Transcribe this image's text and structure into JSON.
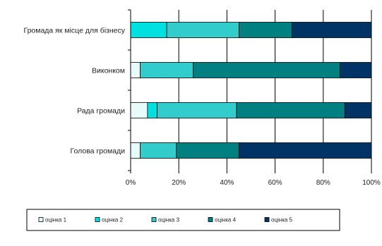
{
  "chart_data": {
    "type": "bar",
    "orientation": "horizontal",
    "stacked": "percent",
    "categories": [
      "Громада як місце для бізнесу",
      "Виконком",
      "Рада громади",
      "Голова громади"
    ],
    "series": [
      {
        "name": "оцінка 1",
        "color": "#e8fbfb",
        "values": [
          0,
          4,
          7,
          4
        ]
      },
      {
        "name": "оцінка 2",
        "color": "#00e0e0",
        "values": [
          15,
          0,
          4,
          0
        ]
      },
      {
        "name": "оцінка 3",
        "color": "#33cccc",
        "values": [
          30,
          22,
          33,
          15
        ]
      },
      {
        "name": "оцінка 4",
        "color": "#008080",
        "values": [
          22,
          61,
          45,
          26
        ]
      },
      {
        "name": "оцінка 5",
        "color": "#003366",
        "values": [
          33,
          13,
          11,
          55
        ]
      }
    ],
    "xlim": [
      0,
      100
    ],
    "xticks": [
      "0%",
      "20%",
      "40%",
      "60%",
      "80%",
      "100%"
    ],
    "grid": "vertical",
    "legend_position": "bottom"
  }
}
